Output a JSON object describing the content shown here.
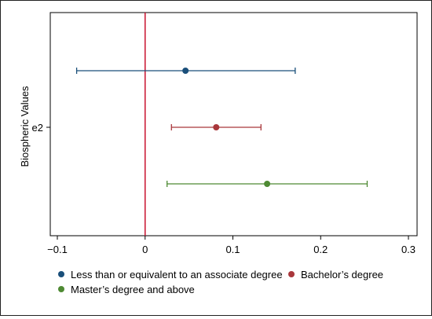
{
  "chart_data": {
    "type": "scatter",
    "subtype": "coefficient-plot-with-confidence-intervals",
    "ylabel": "Biospheric Values",
    "xlabel": "",
    "y_category": "e2",
    "xlim": [
      -0.1,
      0.3
    ],
    "x_ticks": [
      {
        "value": -0.1,
        "label": "−0.1"
      },
      {
        "value": 0,
        "label": "0"
      },
      {
        "value": 0.1,
        "label": "0.1"
      },
      {
        "value": 0.2,
        "label": "0.2"
      },
      {
        "value": 0.3,
        "label": "0.3"
      }
    ],
    "reference_line": {
      "x": 0,
      "color": "#c8102e"
    },
    "grid": false,
    "legend_position": "bottom",
    "series": [
      {
        "name": "Less than or equivalent to an associate degree",
        "color": "#1a4f7a",
        "estimate": 0.046,
        "ci_low": -0.078,
        "ci_high": 0.171
      },
      {
        "name": "Bachelor’s degree",
        "color": "#a9373b",
        "estimate": 0.081,
        "ci_low": 0.03,
        "ci_high": 0.132
      },
      {
        "name": "Master’s degree and above",
        "color": "#4e8a33",
        "estimate": 0.139,
        "ci_low": 0.025,
        "ci_high": 0.253
      }
    ]
  }
}
